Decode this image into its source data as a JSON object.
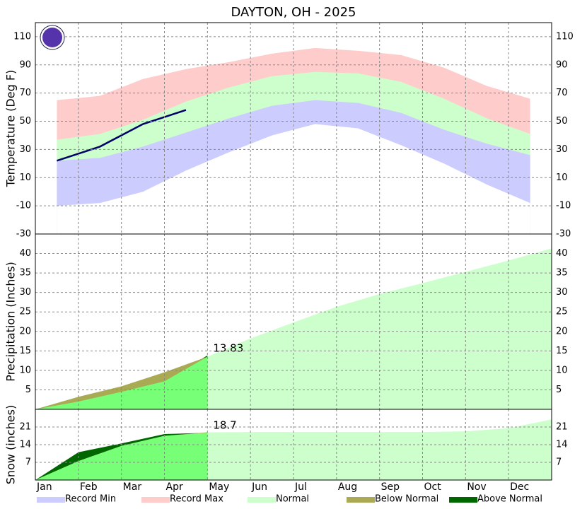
{
  "title": "DAYTON, OH - 2025",
  "categories": [
    "Jan",
    "Feb",
    "Mar",
    "Apr",
    "May",
    "Jun",
    "Jul",
    "Aug",
    "Sep",
    "Oct",
    "Nov",
    "Dec"
  ],
  "legend": [
    {
      "label": "Record Min",
      "color": "#ccccff"
    },
    {
      "label": "Record Max",
      "color": "#ffcccc"
    },
    {
      "label": "Normal",
      "color": "#ccffcc"
    },
    {
      "label": "Below Normal",
      "color": "#aaaa55"
    },
    {
      "label": "Above Normal",
      "color": "#006600"
    }
  ],
  "chart_data": [
    {
      "type": "band",
      "y_label": "Temperature (Deg F)",
      "ylim": [
        -30,
        120
      ],
      "yticks": [
        -30,
        -10,
        10,
        30,
        50,
        70,
        90,
        110
      ],
      "grid": true,
      "series": [
        {
          "name": "Record Max",
          "color": "#ffcccc",
          "values": [
            65,
            68,
            80,
            87,
            92,
            98,
            102,
            100,
            97,
            88,
            75,
            66
          ]
        },
        {
          "name": "Normal",
          "color": "#ccffcc",
          "values": [
            37,
            41,
            51,
            64,
            74,
            82,
            85,
            84,
            78,
            66,
            52,
            41
          ]
        },
        {
          "name": "Record Min",
          "color": "#ccccff",
          "values": [
            22,
            24,
            32,
            42,
            52,
            61,
            65,
            63,
            56,
            44,
            34,
            26
          ]
        },
        {
          "color": "#ffffff",
          "values": [
            -10,
            -8,
            0,
            15,
            28,
            40,
            48,
            45,
            33,
            20,
            5,
            -8
          ]
        },
        {
          "type": "line",
          "color": "#000066",
          "values": [
            22,
            32,
            48,
            58,
            null,
            null,
            null,
            null,
            null,
            null,
            null,
            null
          ]
        }
      ]
    },
    {
      "type": "area",
      "y_label": "Precipitation (Inches)",
      "ylim": [
        0,
        45
      ],
      "yticks": [
        5,
        10,
        15,
        20,
        25,
        30,
        35,
        40
      ],
      "grid": true,
      "to_date_color": "#77ff77",
      "below_color": "#aaaa55",
      "above_color": "#006600",
      "series": [
        {
          "name": "Normal",
          "color": "#ccffcc",
          "values": [
            3.2,
            5.9,
            9.5,
            13.5,
            18.2,
            22.3,
            26.3,
            29.6,
            32.4,
            35.3,
            38.2,
            41.3
          ]
        },
        {
          "values": [
            2.0,
            4.5,
            7.2,
            13.83,
            null,
            null,
            null,
            null,
            null,
            null,
            null,
            null
          ]
        }
      ]
    },
    {
      "type": "area",
      "y_label": "Snow (inches)",
      "ylim": [
        0,
        28
      ],
      "yticks": [
        7,
        14,
        21
      ],
      "grid": true,
      "to_date_color": "#77ff77",
      "below_color": "#aaaa55",
      "above_color": "#006600",
      "series": [
        {
          "name": "Normal",
          "color": "#ccffcc",
          "values": [
            7.5,
            13.5,
            17.5,
            18.9,
            19,
            19,
            19,
            19,
            19,
            19.3,
            20.5,
            24
          ]
        },
        {
          "values": [
            11,
            14.5,
            18.2,
            18.7,
            null,
            null,
            null,
            null,
            null,
            null,
            null,
            null
          ]
        }
      ]
    }
  ]
}
